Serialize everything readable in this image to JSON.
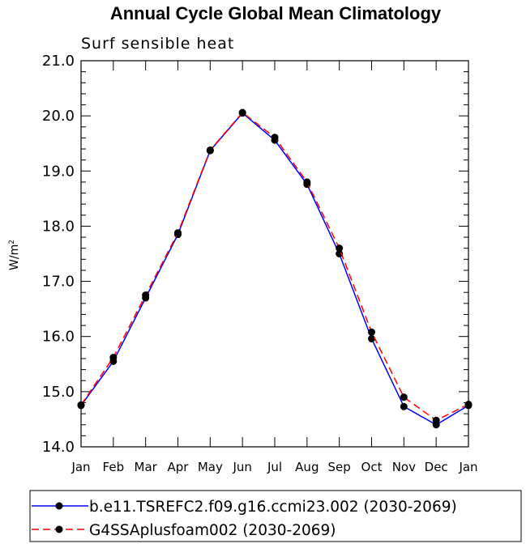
{
  "chart_data": {
    "type": "line",
    "title": "Annual Cycle Global Mean Climatology",
    "subtitle": "Surf sensible heat",
    "ylabel_base": "W/m",
    "ylabel_sup": "2",
    "xlabel": "",
    "categories": [
      "Jan",
      "Feb",
      "Mar",
      "Apr",
      "May",
      "Jun",
      "Jul",
      "Aug",
      "Sep",
      "Oct",
      "Nov",
      "Dec",
      "Jan"
    ],
    "ylim": [
      14.0,
      21.0
    ],
    "yticks": [
      "14.0",
      "15.0",
      "16.0",
      "17.0",
      "18.0",
      "19.0",
      "20.0",
      "21.0"
    ],
    "grid": false,
    "legend_position": "bottom",
    "series": [
      {
        "name": "b.e11.TSREFC2.f09.g16.ccmi23.002 (2030-2069)",
        "color": "#0000ff",
        "dashed": false,
        "values": [
          14.75,
          15.55,
          16.7,
          17.85,
          19.37,
          20.05,
          19.56,
          18.76,
          17.5,
          15.96,
          14.73,
          14.4,
          14.75
        ]
      },
      {
        "name": "G4SSAplusfoam002 (2030-2069)",
        "color": "#ff0000",
        "dashed": true,
        "values": [
          14.76,
          15.62,
          16.75,
          17.88,
          19.38,
          20.06,
          19.61,
          18.8,
          17.6,
          16.08,
          14.9,
          14.48,
          14.77
        ]
      }
    ]
  }
}
